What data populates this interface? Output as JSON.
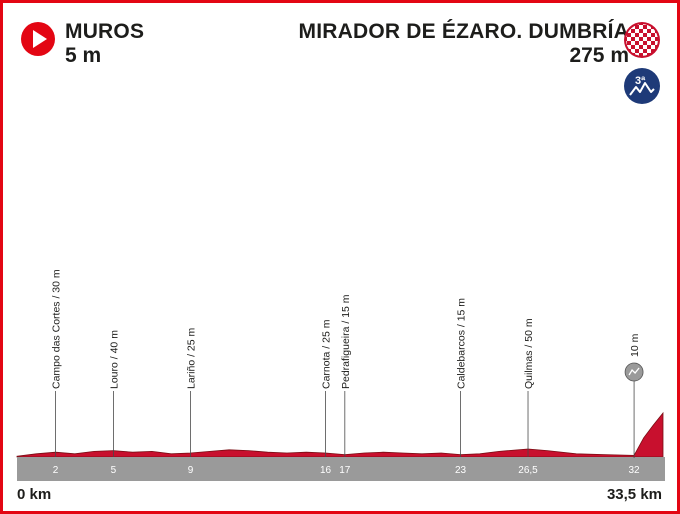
{
  "start": {
    "name": "MUROS",
    "altitude": "5 m"
  },
  "finish": {
    "name": "MIRADOR DE ÉZARO. DUMBRÍA",
    "altitude": "275 m",
    "climb_category": "3ª"
  },
  "icons": {
    "start": "play-circle-icon",
    "finish": "checkered-flag-icon",
    "climb": "mountain-climb-icon",
    "sprint": "intermediate-sprint-icon"
  },
  "colors": {
    "frame": "#e30613",
    "profile": "#c8102e",
    "profile_dark": "#7a0d14",
    "road": "#9a9a9a",
    "text": "#1d1d1b",
    "badge": "#1e3a78"
  },
  "chart_data": {
    "type": "area",
    "title": "Muros – Mirador de Ézaro. Dumbría",
    "xlabel": "km",
    "ylabel": "m",
    "xlim": [
      0,
      33.5
    ],
    "ylim": [
      0,
      300
    ],
    "x_start_label": "0 km",
    "x_end_label": "33,5 km",
    "ticks": [
      {
        "km": 2,
        "label": "2"
      },
      {
        "km": 5,
        "label": "5"
      },
      {
        "km": 9,
        "label": "9"
      },
      {
        "km": 16,
        "label": "16"
      },
      {
        "km": 17,
        "label": "17"
      },
      {
        "km": 23,
        "label": "23"
      },
      {
        "km": 26.5,
        "label": "26,5"
      },
      {
        "km": 32,
        "label": "32"
      }
    ],
    "waypoints": [
      {
        "km": 2,
        "label": "Campo das Cortes / 30 m"
      },
      {
        "km": 5,
        "label": "Louro / 40 m"
      },
      {
        "km": 9,
        "label": "Lariño / 25 m"
      },
      {
        "km": 16,
        "label": "Carnota / 25 m"
      },
      {
        "km": 17,
        "label": "Pedrafigueira / 15 m"
      },
      {
        "km": 23,
        "label": "Caldebarcos / 15 m"
      },
      {
        "km": 26.5,
        "label": "Quilmas / 50 m"
      }
    ],
    "sprint": {
      "km": 32,
      "label": "10 m"
    },
    "profile": {
      "x": [
        0,
        1,
        2,
        3,
        4,
        5,
        6,
        7,
        8,
        9,
        10,
        11,
        12,
        13,
        14,
        15,
        16,
        17,
        18,
        19,
        20,
        21,
        22,
        23,
        24,
        25,
        26.5,
        27.5,
        29,
        30.5,
        32,
        32.5,
        33,
        33.5
      ],
      "y": [
        5,
        20,
        30,
        20,
        35,
        40,
        30,
        35,
        20,
        25,
        35,
        45,
        40,
        30,
        25,
        30,
        25,
        15,
        25,
        30,
        25,
        20,
        25,
        15,
        20,
        35,
        50,
        40,
        20,
        15,
        10,
        120,
        200,
        275
      ]
    }
  }
}
